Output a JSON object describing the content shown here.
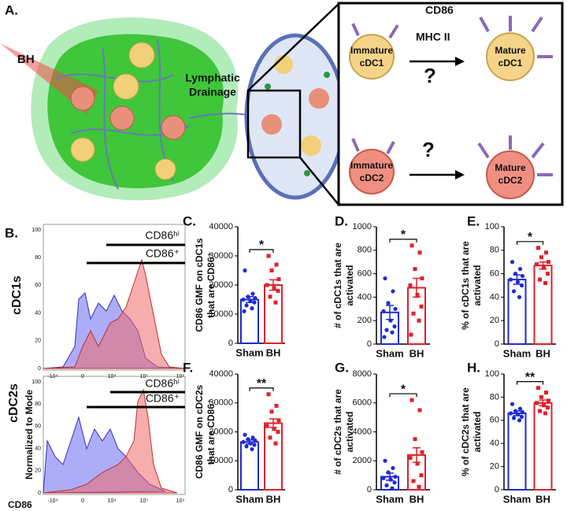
{
  "panel_a": {
    "label": "A.",
    "bh": "BH",
    "drainage": [
      "Lymphatic",
      "Drainage"
    ],
    "cd86": "CD86",
    "mhc": "MHC II",
    "immature_1": [
      "Immature",
      "cDC1"
    ],
    "mature_1": [
      "Mature",
      "cDC1"
    ],
    "immature_2": [
      "Immature",
      "cDC2"
    ],
    "mature_2": [
      "Mature",
      "cDC2"
    ],
    "question": [
      "?",
      "?"
    ]
  },
  "panel_b": {
    "label": "B.",
    "rows": [
      "cDC1s",
      "cDC2s"
    ],
    "y_label": "Normalized to Mode",
    "x_label": "CD86",
    "gates": [
      "CD86ʰⁱ",
      "CD86⁺"
    ],
    "x_tick_labels": [
      "-10⁴",
      "0",
      "10⁴",
      "10⁵",
      "10⁶"
    ],
    "y_tick_labels": [
      "100",
      "80",
      "60",
      "40",
      "20",
      "0"
    ]
  },
  "chart_data": [
    {
      "type": "bar",
      "panel": "C.",
      "y_label": [
        "CD86 GMF on cDC1s",
        "that are CD86⁺"
      ],
      "categories": [
        "Sham",
        "BH"
      ],
      "colors": [
        "#1f2bd6",
        "#e0202a"
      ],
      "values": [
        15000,
        20000
      ],
      "errors": [
        1000,
        1800
      ],
      "points": [
        [
          25000,
          17000,
          16000,
          15500,
          15000,
          14500,
          14000,
          13000,
          12000,
          11000
        ],
        [
          30000,
          27000,
          25000,
          22000,
          20000,
          19000,
          18000,
          16000,
          14000
        ]
      ],
      "ylim": [
        0,
        40000
      ],
      "yticks": [
        0,
        10000,
        20000,
        30000,
        40000
      ],
      "significance": "*"
    },
    {
      "type": "bar",
      "panel": "D.",
      "y_label": [
        "# of cDC1s that are",
        "activated"
      ],
      "categories": [
        "Sham",
        "BH"
      ],
      "colors": [
        "#1f2bd6",
        "#e0202a"
      ],
      "values": [
        270,
        480
      ],
      "errors": [
        60,
        80
      ],
      "points": [
        [
          560,
          450,
          350,
          300,
          280,
          200,
          150,
          120,
          100,
          60
        ],
        [
          840,
          780,
          640,
          560,
          500,
          420,
          320,
          260,
          200,
          80
        ]
      ],
      "ylim": [
        0,
        1000
      ],
      "yticks": [
        0,
        200,
        400,
        600,
        800,
        1000
      ],
      "significance": "*"
    },
    {
      "type": "bar",
      "panel": "E.",
      "y_label": [
        "% of cDC1s that are",
        "activated"
      ],
      "categories": [
        "Sham",
        "BH"
      ],
      "colors": [
        "#1f2bd6",
        "#e0202a"
      ],
      "values": [
        55,
        67
      ],
      "errors": [
        4,
        3
      ],
      "points": [
        [
          70,
          64,
          60,
          58,
          55,
          53,
          50,
          45,
          40
        ],
        [
          82,
          78,
          74,
          70,
          68,
          65,
          60,
          55,
          52
        ]
      ],
      "ylim": [
        0,
        100
      ],
      "yticks": [
        0,
        20,
        40,
        60,
        80,
        100
      ],
      "significance": "*"
    },
    {
      "type": "bar",
      "panel": "F.",
      "y_label": [
        "CD86 GMF on cDC2s",
        "that are CD86⁺"
      ],
      "categories": [
        "Sham",
        "BH"
      ],
      "colors": [
        "#1f2bd6",
        "#e0202a"
      ],
      "values": [
        16500,
        23000
      ],
      "errors": [
        700,
        1500
      ],
      "points": [
        [
          19000,
          18000,
          17500,
          17000,
          16500,
          16000,
          15500,
          15000,
          14000
        ],
        [
          33000,
          29000,
          27000,
          24000,
          22000,
          21000,
          20000,
          18000,
          16000
        ]
      ],
      "ylim": [
        0,
        40000
      ],
      "yticks": [
        0,
        10000,
        20000,
        30000,
        40000
      ],
      "significance": "**"
    },
    {
      "type": "bar",
      "panel": "G.",
      "y_label": [
        "# of cDC2s that are",
        "activated"
      ],
      "categories": [
        "Sham",
        "BH"
      ],
      "colors": [
        "#1f2bd6",
        "#e0202a"
      ],
      "values": [
        900,
        2400
      ],
      "errors": [
        250,
        500
      ],
      "points": [
        [
          2000,
          1500,
          1200,
          900,
          800,
          700,
          500,
          300,
          100
        ],
        [
          6200,
          5500,
          3500,
          2600,
          2200,
          1800,
          1000,
          600,
          200
        ]
      ],
      "ylim": [
        0,
        8000
      ],
      "yticks": [
        0,
        2000,
        4000,
        6000,
        8000
      ],
      "significance": "*"
    },
    {
      "type": "bar",
      "panel": "H.",
      "y_label": [
        "% of cDC2s that are",
        "activated"
      ],
      "categories": [
        "Sham",
        "BH"
      ],
      "colors": [
        "#1f2bd6",
        "#e0202a"
      ],
      "values": [
        66,
        75
      ],
      "errors": [
        2,
        2.5
      ],
      "points": [
        [
          74,
          70,
          68,
          67,
          66,
          65,
          63,
          62,
          60
        ],
        [
          88,
          84,
          80,
          77,
          75,
          73,
          71,
          68,
          66
        ]
      ],
      "ylim": [
        0,
        100
      ],
      "yticks": [
        0,
        20,
        40,
        60,
        80,
        100
      ],
      "significance": "**"
    }
  ]
}
